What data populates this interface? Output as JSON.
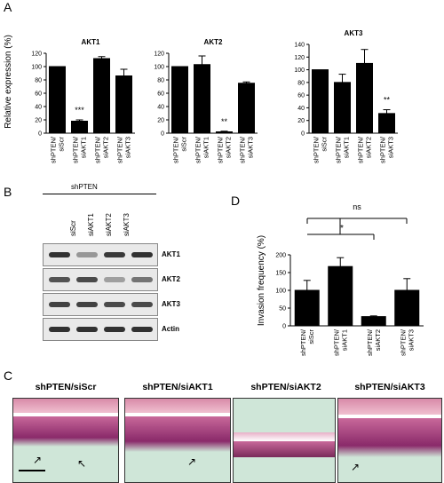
{
  "panels": {
    "a": "A",
    "b": "B",
    "c": "C",
    "d": "D"
  },
  "panel_a": {
    "ylabel": "Relative expression (%)",
    "charts": [
      {
        "title": "AKT1",
        "ymax": 120,
        "ticks": [
          "0",
          "20",
          "40",
          "60",
          "80",
          "100",
          "120"
        ],
        "categories": [
          "shPTEN/\nsiScr",
          "shPTEN/\nsiAKT1",
          "shPTEN/\nsiAKT2",
          "shPTEN/\nsiAKT3"
        ],
        "values": [
          100,
          18,
          112,
          86
        ],
        "errors": [
          0,
          2,
          3,
          10
        ],
        "sig": [
          "",
          "***",
          "",
          ""
        ]
      },
      {
        "title": "AKT2",
        "ymax": 120,
        "ticks": [
          "0",
          "20",
          "40",
          "60",
          "80",
          "100",
          "120"
        ],
        "categories": [
          "shPTEN/\nsiScr",
          "shPTEN/\nsiAKT1",
          "shPTEN/\nsiAKT2",
          "shPTEN/\nsiAKT3"
        ],
        "values": [
          100,
          103,
          2,
          75
        ],
        "errors": [
          0,
          13,
          1,
          2
        ],
        "sig": [
          "",
          "",
          "**",
          ""
        ]
      },
      {
        "title": "AKT3",
        "ymax": 140,
        "ticks": [
          "0",
          "20",
          "40",
          "60",
          "80",
          "100",
          "120",
          "140"
        ],
        "categories": [
          "shPTEN/\nsiScr",
          "shPTEN/\nsiAKT1",
          "shPTEN/\nsiAKT2",
          "shPTEN/\nsiAKT3"
        ],
        "values": [
          100,
          80,
          110,
          31
        ],
        "errors": [
          0,
          13,
          22,
          6
        ],
        "sig": [
          "",
          "",
          "",
          "**"
        ]
      }
    ]
  },
  "panel_b": {
    "header": "shPTEN",
    "lanes": [
      "siScr",
      "siAKT1",
      "siAKT2",
      "siAKT3"
    ],
    "rows": [
      {
        "label": "AKT1",
        "intensity": [
          0.95,
          0.35,
          0.9,
          0.95
        ]
      },
      {
        "label": "AKT2",
        "intensity": [
          0.75,
          0.8,
          0.3,
          0.55
        ]
      },
      {
        "label": "AKT3",
        "intensity": [
          0.85,
          0.85,
          0.8,
          0.8
        ]
      },
      {
        "label": "Actin",
        "intensity": [
          0.95,
          0.95,
          0.95,
          0.95
        ]
      }
    ]
  },
  "panel_d": {
    "ylabel": "Invasion frequency (%)",
    "ymax": 200,
    "ticks": [
      "0",
      "50",
      "100",
      "150",
      "200"
    ],
    "categories": [
      "shPTEN/\nsiScr",
      "shPTEN/\nsiAKT1",
      "shPTEN/\nsiAKT2",
      "shPTEN/\nsiAKT3"
    ],
    "values": [
      100,
      167,
      26,
      100
    ],
    "errors": [
      28,
      25,
      2,
      33
    ],
    "brackets": [
      {
        "label": "ns"
      },
      {
        "label": "*"
      }
    ]
  },
  "panel_c": {
    "titles": [
      "shPTEN/siScr",
      "shPTEN/siAKT1",
      "shPTEN/siAKT2",
      "shPTEN/siAKT3"
    ]
  },
  "chart_data": [
    {
      "type": "bar",
      "title": "AKT1",
      "ylabel": "Relative expression (%)",
      "categories": [
        "shPTEN/siScr",
        "shPTEN/siAKT1",
        "shPTEN/siAKT2",
        "shPTEN/siAKT3"
      ],
      "values": [
        100,
        18,
        112,
        86
      ],
      "ylim": [
        0,
        120
      ]
    },
    {
      "type": "bar",
      "title": "AKT2",
      "categories": [
        "shPTEN/siScr",
        "shPTEN/siAKT1",
        "shPTEN/siAKT2",
        "shPTEN/siAKT3"
      ],
      "values": [
        100,
        103,
        2,
        75
      ],
      "ylim": [
        0,
        120
      ]
    },
    {
      "type": "bar",
      "title": "AKT3",
      "categories": [
        "shPTEN/siScr",
        "shPTEN/siAKT1",
        "shPTEN/siAKT2",
        "shPTEN/siAKT3"
      ],
      "values": [
        100,
        80,
        110,
        31
      ],
      "ylim": [
        0,
        140
      ]
    },
    {
      "type": "bar",
      "ylabel": "Invasion frequency (%)",
      "categories": [
        "shPTEN/siScr",
        "shPTEN/siAKT1",
        "shPTEN/siAKT2",
        "shPTEN/siAKT3"
      ],
      "values": [
        100,
        167,
        26,
        100
      ],
      "ylim": [
        0,
        200
      ]
    }
  ]
}
